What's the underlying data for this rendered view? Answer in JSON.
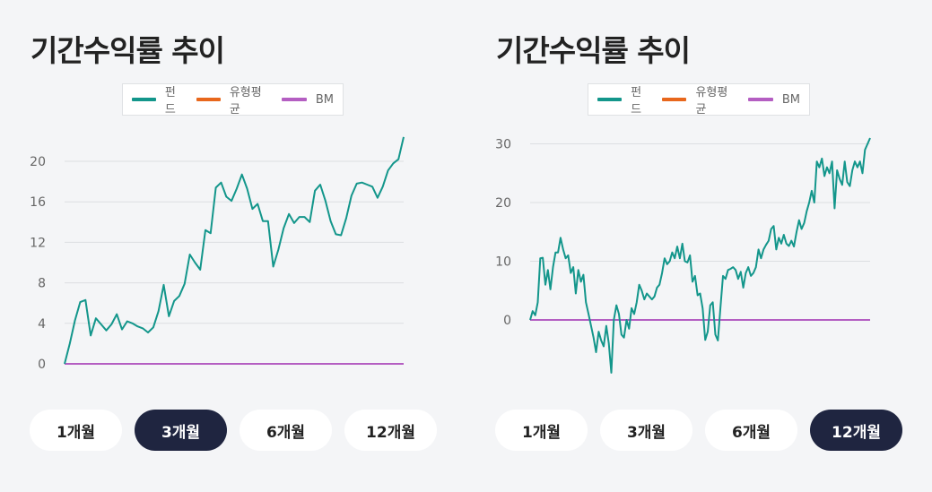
{
  "colors": {
    "fund": "#13968b",
    "category_avg": "#e8671c",
    "bm": "#b45ec2",
    "active_button": "#1f2540"
  },
  "legend": [
    {
      "label": "펀드",
      "color": "#13968b"
    },
    {
      "label": "유형평균",
      "color": "#e8671c"
    },
    {
      "label": "BM",
      "color": "#b45ec2"
    }
  ],
  "panels": [
    {
      "title": "기간수익률 추이",
      "buttons": [
        "1개월",
        "3개월",
        "6개월",
        "12개월"
      ],
      "active_button": "3개월"
    },
    {
      "title": "기간수익률 추이",
      "buttons": [
        "1개월",
        "3개월",
        "6개월",
        "12개월"
      ],
      "active_button": "12개월"
    }
  ],
  "chart_data": [
    {
      "type": "line",
      "ylim": [
        0,
        22
      ],
      "yticks": [
        0,
        4,
        8,
        12,
        16,
        20
      ],
      "grid": true,
      "legend_position": "top",
      "series": [
        {
          "name": "펀드",
          "values": [
            0,
            2,
            4.3,
            6.1,
            6.3,
            2.8,
            4.5,
            3.9,
            3.3,
            3.9,
            4.9,
            3.4,
            4.2,
            4.0,
            3.7,
            3.5,
            3.1,
            3.6,
            5.2,
            7.8,
            4.7,
            6.2,
            6.7,
            7.9,
            10.8,
            10.0,
            9.3,
            13.2,
            12.9,
            17.4,
            17.9,
            16.5,
            16.1,
            17.3,
            18.7,
            17.3,
            15.3,
            15.8,
            14.1,
            14.1,
            9.6,
            11.3,
            13.4,
            14.8,
            13.9,
            14.5,
            14.5,
            14.0,
            17.1,
            17.7,
            16.1,
            14.1,
            12.8,
            12.7,
            14.4,
            16.6,
            17.8,
            17.9,
            17.7,
            17.5,
            16.4,
            17.5,
            19.1,
            19.8,
            20.2,
            22.4
          ]
        },
        {
          "name": "유형평균",
          "values": []
        },
        {
          "name": "BM",
          "values": [
            0,
            0
          ]
        }
      ]
    },
    {
      "type": "line",
      "ylim": [
        -9,
        33
      ],
      "yticks": [
        0,
        10,
        20,
        30
      ],
      "grid": true,
      "legend_position": "top",
      "series": [
        {
          "name": "펀드",
          "values": [
            0,
            1.5,
            0.8,
            3,
            10.5,
            10.6,
            6,
            8.5,
            5.2,
            9,
            11.5,
            11.5,
            14,
            12,
            10.5,
            11,
            8,
            9,
            4.5,
            8.5,
            6.5,
            7.7,
            3,
            1,
            -1,
            -3,
            -5.5,
            -2,
            -3.5,
            -4.5,
            -1,
            -4,
            -9,
            0,
            2.5,
            1,
            -2.5,
            -3,
            0,
            -1.5,
            2,
            1,
            3,
            6,
            5,
            3.5,
            4.5,
            4,
            3.5,
            4,
            5.5,
            6,
            8,
            10.5,
            9.5,
            10,
            11.5,
            10.5,
            12.5,
            10.5,
            13,
            10,
            9.8,
            11,
            6.5,
            7.5,
            4.2,
            4.5,
            2,
            -3.4,
            -2,
            2.5,
            3,
            -2.5,
            -3.5,
            2,
            7.5,
            7,
            8.5,
            8.7,
            9,
            8.5,
            7,
            8.2,
            5.5,
            8,
            9,
            7.5,
            8,
            9,
            12,
            10.5,
            12,
            12.8,
            13.5,
            15.5,
            16,
            12,
            14,
            13,
            14.5,
            13,
            12.6,
            13.5,
            12.5,
            15,
            17,
            15.5,
            16.5,
            18.5,
            20,
            22,
            20,
            27,
            26,
            27.5,
            24.5,
            26,
            25,
            27,
            19,
            25.5,
            24,
            23,
            27,
            23.5,
            22.8,
            25.5,
            27,
            26,
            27,
            25,
            29,
            30,
            31
          ]
        },
        {
          "name": "유형평균",
          "values": []
        },
        {
          "name": "BM",
          "values": [
            0,
            0
          ]
        }
      ]
    }
  ]
}
